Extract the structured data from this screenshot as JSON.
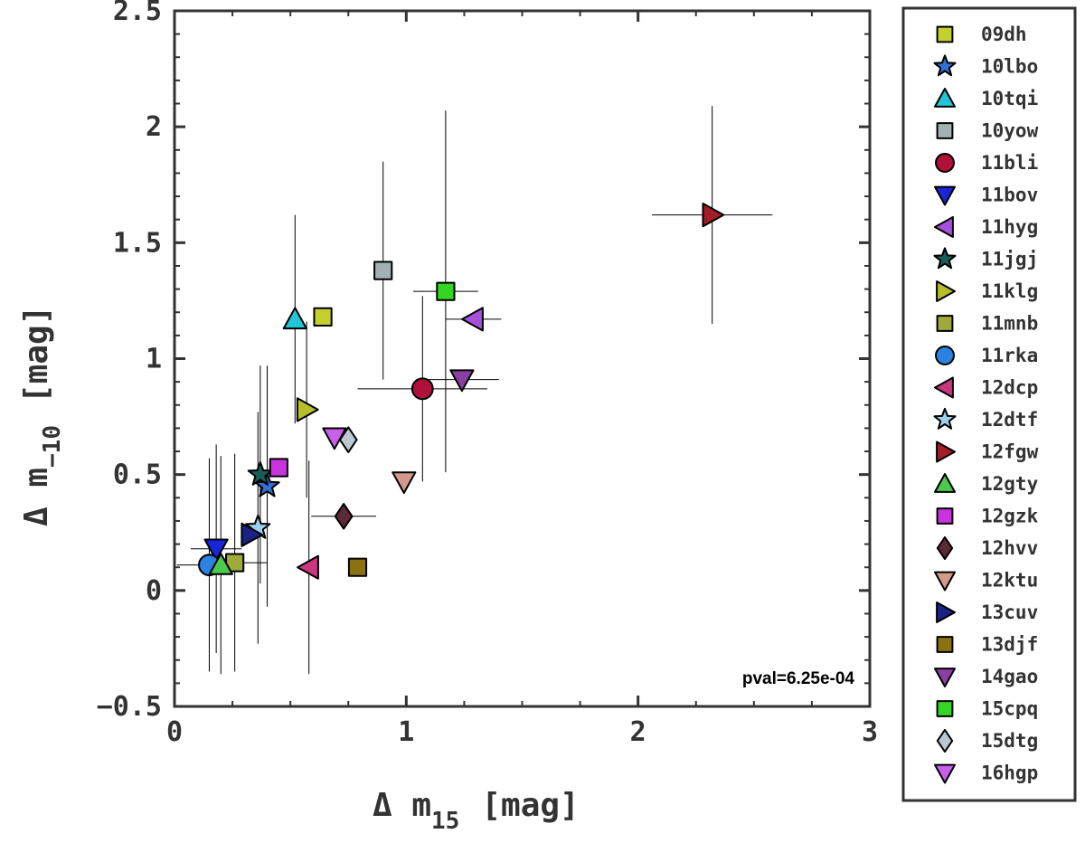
{
  "chart_data": {
    "type": "scatter",
    "xlabel_prefix": "Δ m",
    "xlabel_sub": "15",
    "xlabel_suffix": "[mag]",
    "ylabel_prefix": "Δ m",
    "ylabel_sub": "−10",
    "ylabel_suffix": "[mag]",
    "xlim": [
      0,
      3
    ],
    "ylim": [
      -0.5,
      2.5
    ],
    "xticks": [
      "0",
      "1",
      "2",
      "3"
    ],
    "xtick_values": [
      0,
      1,
      2,
      3
    ],
    "yticks": [
      "−0.5",
      "0",
      "0.5",
      "1",
      "1.5",
      "2",
      "2.5"
    ],
    "ytick_values": [
      -0.5,
      0,
      0.5,
      1,
      1.5,
      2,
      2.5
    ],
    "legend_position": "right, outside plot",
    "annotation": "pval=6.25e-04",
    "series": [
      {
        "name": "09dh",
        "marker": "square",
        "color": "#c4d12c",
        "x": 0.64,
        "y": 1.18,
        "xerr": 0.0,
        "yerr": 0.0
      },
      {
        "name": "10lbo",
        "marker": "star",
        "color": "#2f6fd6",
        "x": 0.4,
        "y": 0.45,
        "xerr": 0.0,
        "yerr": 0.52
      },
      {
        "name": "10tqi",
        "marker": "triangle-up",
        "color": "#23c6d6",
        "x": 0.52,
        "y": 1.17,
        "xerr": 0.0,
        "yerr": 0.45
      },
      {
        "name": "10yow",
        "marker": "square",
        "color": "#a3b1b1",
        "x": 0.9,
        "y": 1.38,
        "xerr": 0.0,
        "yerr": 0.47
      },
      {
        "name": "11bli",
        "marker": "circle",
        "color": "#b0103a",
        "x": 1.07,
        "y": 0.87,
        "xerr": 0.28,
        "yerr": 0.4
      },
      {
        "name": "11bov",
        "marker": "triangle-down",
        "color": "#1626d8",
        "x": 0.18,
        "y": 0.18,
        "xerr": 0.11,
        "yerr": 0.45
      },
      {
        "name": "11hyg",
        "marker": "triangle-left",
        "color": "#a651de",
        "x": 1.29,
        "y": 1.17,
        "xerr": 0.12,
        "yerr": 0.0
      },
      {
        "name": "11jgj",
        "marker": "star",
        "color": "#1b5e57",
        "x": 0.37,
        "y": 0.5,
        "xerr": 0.0,
        "yerr": 0.47
      },
      {
        "name": "11klg",
        "marker": "triangle-right",
        "color": "#b6bf29",
        "x": 0.57,
        "y": 0.78,
        "xerr": 0.0,
        "yerr": 0.38
      },
      {
        "name": "11mnb",
        "marker": "square",
        "color": "#9eaa3b",
        "x": 0.26,
        "y": 0.12,
        "xerr": 0.14,
        "yerr": 0.47
      },
      {
        "name": "11rka",
        "marker": "circle",
        "color": "#2c82e0",
        "x": 0.15,
        "y": 0.11,
        "xerr": 0.14,
        "yerr": 0.46
      },
      {
        "name": "12dcp",
        "marker": "triangle-left",
        "color": "#c9387f",
        "x": 0.58,
        "y": 0.1,
        "xerr": 0.0,
        "yerr": 0.46
      },
      {
        "name": "12dtf",
        "marker": "star",
        "color": "#9dd0eb",
        "x": 0.36,
        "y": 0.27,
        "xerr": 0.0,
        "yerr": 0.5
      },
      {
        "name": "12fgw",
        "marker": "triangle-right",
        "color": "#a31d26",
        "x": 2.32,
        "y": 1.62,
        "xerr": 0.26,
        "yerr": 0.47
      },
      {
        "name": "12gty",
        "marker": "triangle-up",
        "color": "#4cc94e",
        "x": 0.2,
        "y": 0.11,
        "xerr": 0.0,
        "yerr": 0.47
      },
      {
        "name": "12gzk",
        "marker": "square",
        "color": "#c833df",
        "x": 0.45,
        "y": 0.53,
        "xerr": 0.0,
        "yerr": 0.0
      },
      {
        "name": "12hvv",
        "marker": "diamond",
        "color": "#5a2a37",
        "x": 0.73,
        "y": 0.32,
        "xerr": 0.14,
        "yerr": 0.0
      },
      {
        "name": "12ktu",
        "marker": "triangle-down",
        "color": "#d39a8b",
        "x": 0.99,
        "y": 0.47,
        "xerr": 0.0,
        "yerr": 0.0
      },
      {
        "name": "13cuv",
        "marker": "triangle-right",
        "color": "#1b2285",
        "x": 0.33,
        "y": 0.24,
        "xerr": 0.0,
        "yerr": 0.0
      },
      {
        "name": "13djf",
        "marker": "square",
        "color": "#8b7210",
        "x": 0.79,
        "y": 0.1,
        "xerr": 0.0,
        "yerr": 0.0
      },
      {
        "name": "14gao",
        "marker": "triangle-down",
        "color": "#8b3ea3",
        "x": 1.24,
        "y": 0.91,
        "xerr": 0.16,
        "yerr": 0.0
      },
      {
        "name": "15cpq",
        "marker": "square",
        "color": "#34d624",
        "x": 1.17,
        "y": 1.29,
        "xerr": 0.14,
        "yerr": 0.78
      },
      {
        "name": "15dtg",
        "marker": "diamond",
        "color": "#bcc7cf",
        "x": 0.75,
        "y": 0.65,
        "xerr": 0.0,
        "yerr": 0.0
      },
      {
        "name": "16hgp",
        "marker": "triangle-down",
        "color": "#c860ec",
        "x": 0.69,
        "y": 0.66,
        "xerr": 0.0,
        "yerr": 0.0
      }
    ]
  }
}
